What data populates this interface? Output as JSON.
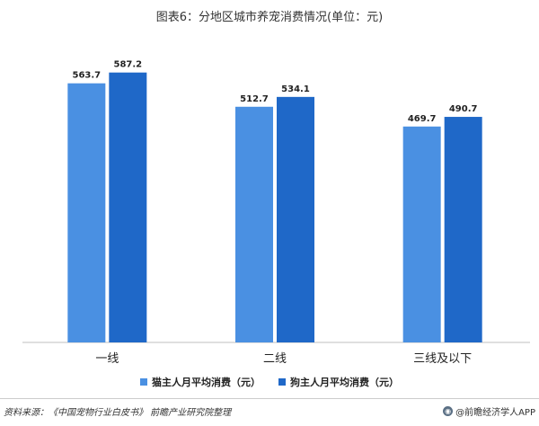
{
  "title": "图表6：分地区城市养宠消费情况(单位：元)",
  "legend": {
    "cat": "猫主人月平均消费（元）",
    "dog": "狗主人月平均消费（元）"
  },
  "colors": {
    "cat": "#4a90e2",
    "dog": "#1f68c8",
    "axis": "#bfbfbf",
    "text": "#222222"
  },
  "footer": {
    "source": "资料来源：《中国宠物行业白皮书》 前瞻产业研究院整理",
    "brand": "@前瞻经济学人APP"
  },
  "chart_data": {
    "type": "bar",
    "title": "图表6：分地区城市养宠消费情况(单位：元)",
    "categories": [
      "一线",
      "二线",
      "三线及以下"
    ],
    "series": [
      {
        "name": "猫主人月平均消费（元）",
        "values": [
          563.7,
          512.7,
          469.7
        ]
      },
      {
        "name": "狗主人月平均消费（元）",
        "values": [
          587.2,
          534.1,
          490.7
        ]
      }
    ],
    "xlabel": "",
    "ylabel": "",
    "ylim": [
      0,
      700
    ],
    "grid": false,
    "legend_position": "bottom"
  }
}
